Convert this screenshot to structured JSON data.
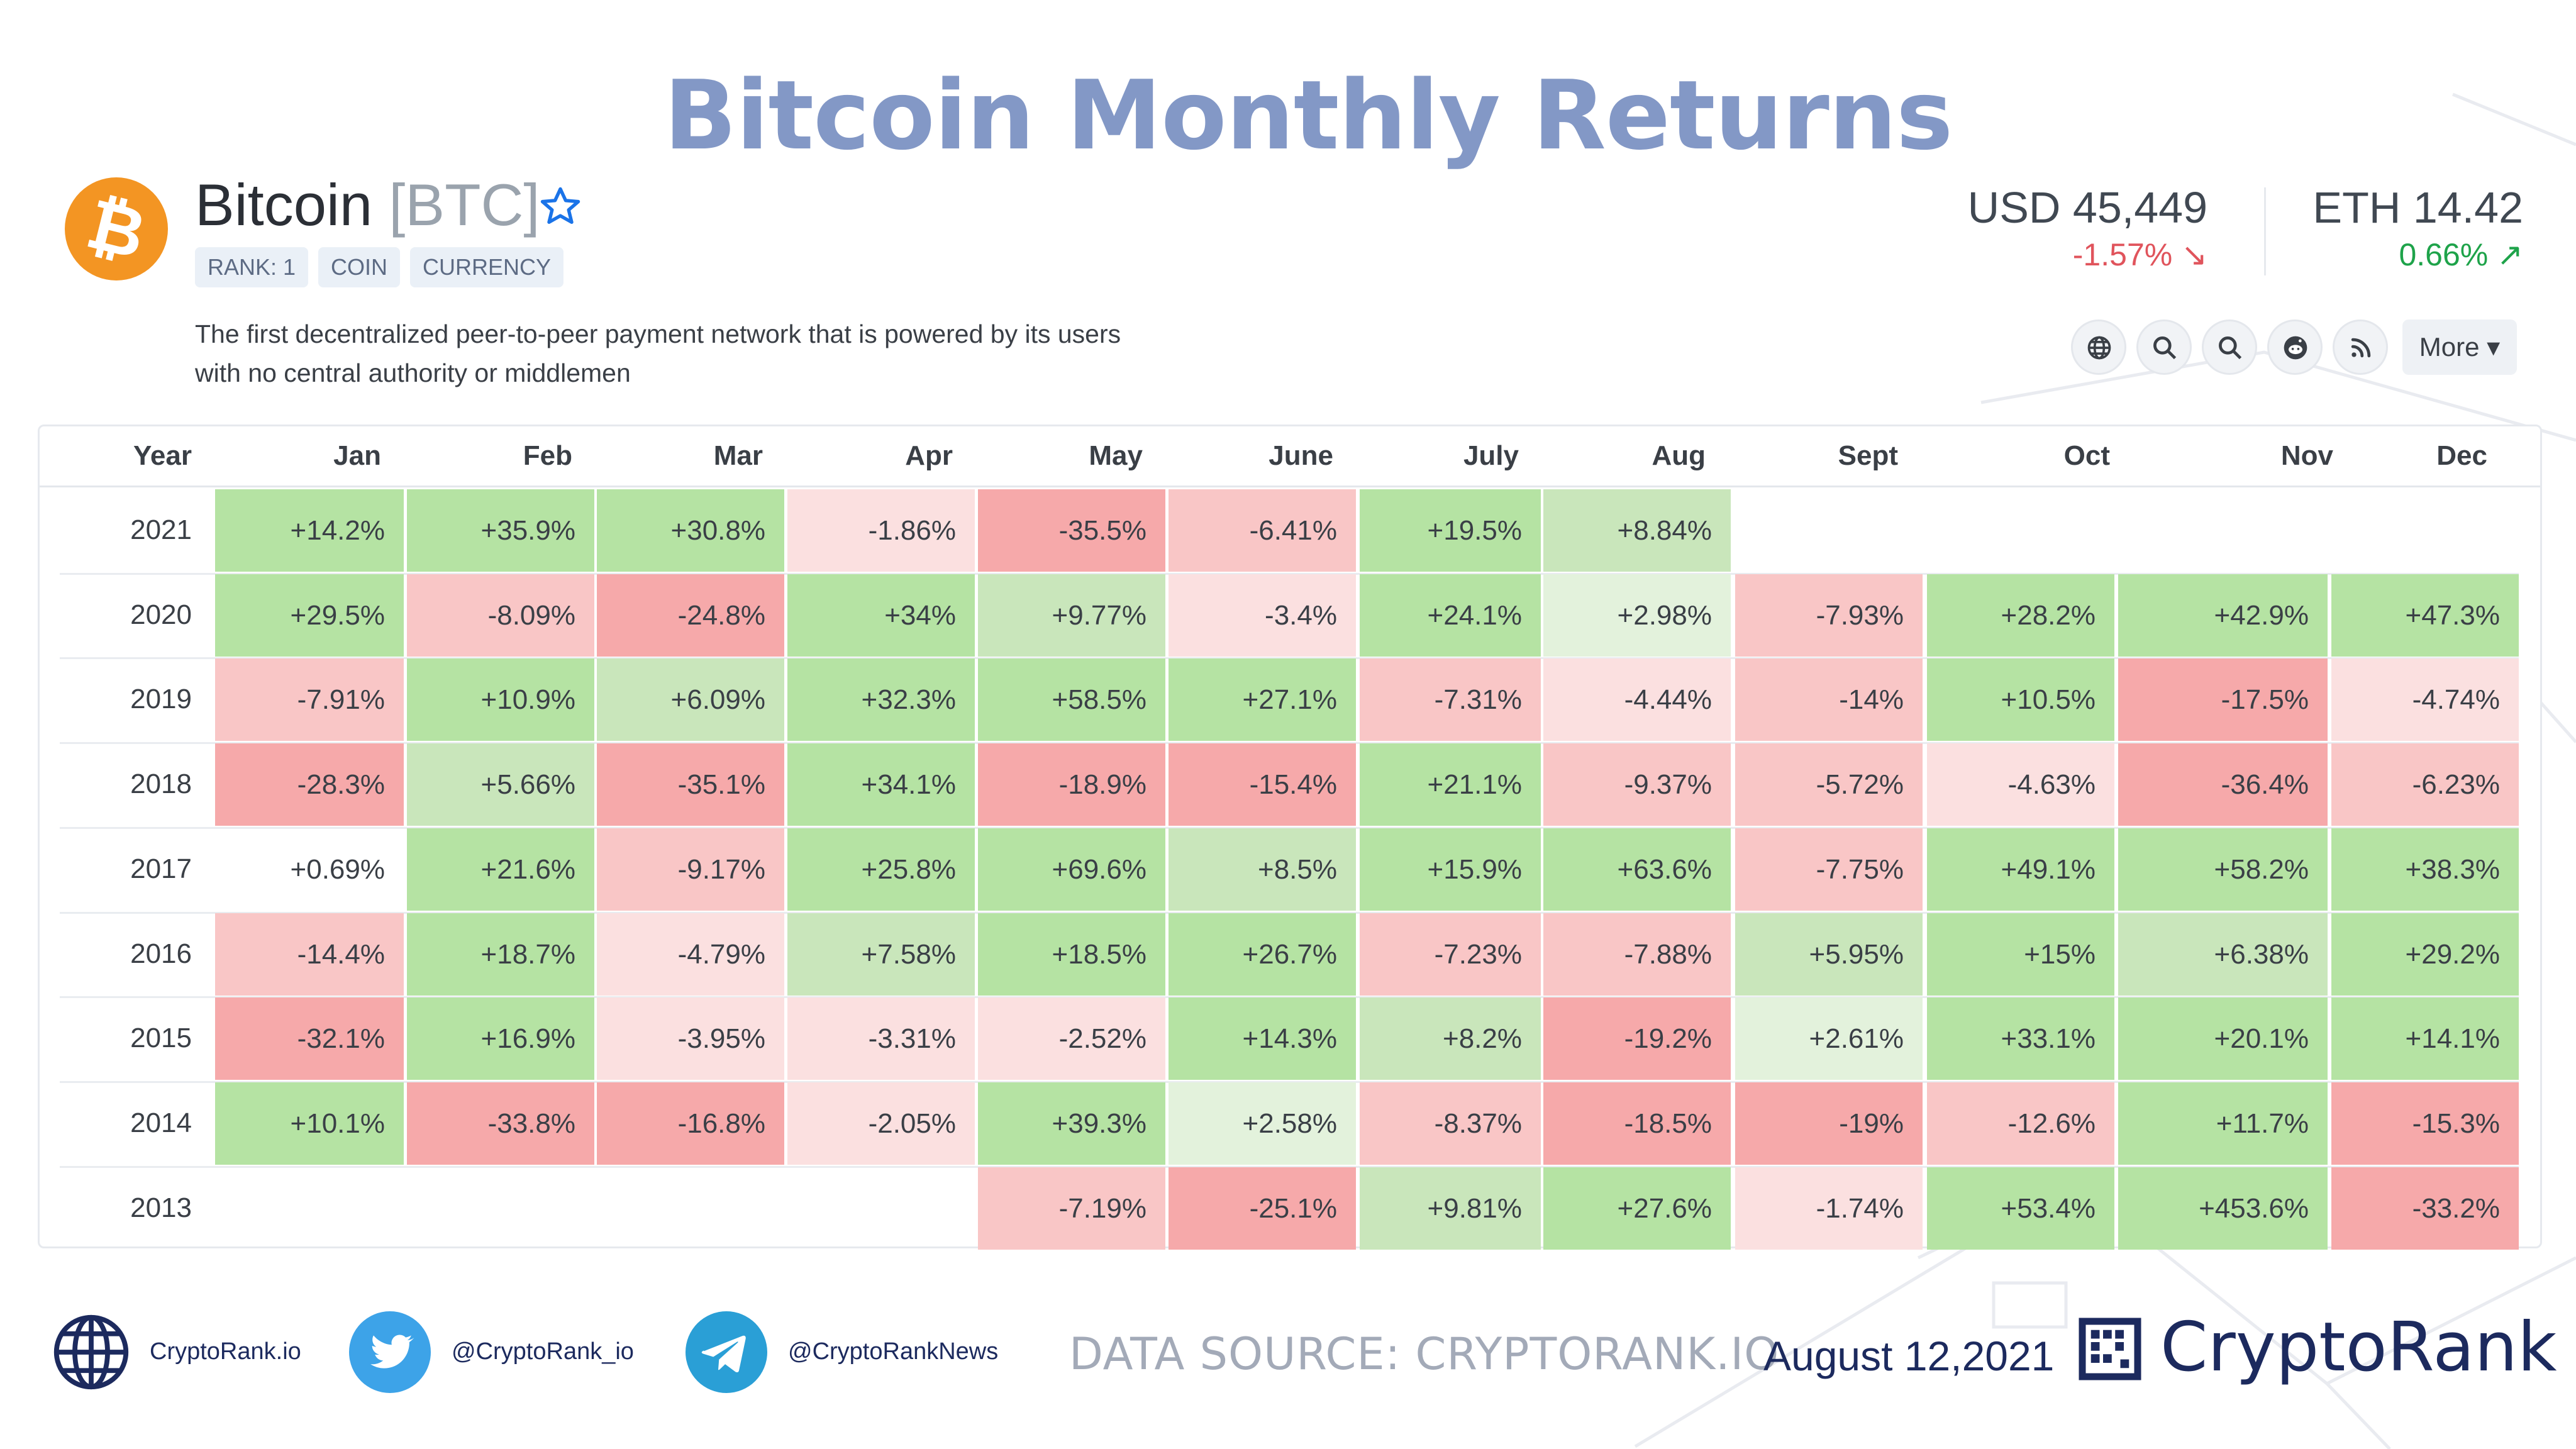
{
  "title": "Bitcoin Monthly Returns",
  "coin": {
    "name": "Bitcoin",
    "symbol": "[BTC]",
    "logo_glyph": "₿",
    "tags": [
      "RANK: 1",
      "COIN",
      "CURRENCY"
    ],
    "description_line1": "The first decentralized peer-to-peer payment network that is powered by its users",
    "description_line2": "with no central authority or middlemen"
  },
  "prices": {
    "usd": {
      "label": "USD 45,449",
      "change": "-1.57% ↘"
    },
    "eth": {
      "label": "ETH 14.42",
      "change": "0.66% ↗"
    }
  },
  "toolbar": {
    "icons": [
      "globe-icon",
      "search-icon",
      "search-icon",
      "reddit-icon",
      "rss-icon"
    ],
    "more_label": "More ▾"
  },
  "table": {
    "header": [
      "Year",
      "Jan",
      "Feb",
      "Mar",
      "Apr",
      "May",
      "June",
      "July",
      "Aug",
      "Sept",
      "Oct",
      "Nov",
      "Dec"
    ],
    "rows": [
      {
        "year": "2021",
        "values": [
          "+14.2%",
          "+35.9%",
          "+30.8%",
          "-1.86%",
          "-35.5%",
          "-6.41%",
          "+19.5%",
          "+8.84%",
          "",
          "",
          "",
          ""
        ]
      },
      {
        "year": "2020",
        "values": [
          "+29.5%",
          "-8.09%",
          "-24.8%",
          "+34%",
          "+9.77%",
          "-3.4%",
          "+24.1%",
          "+2.98%",
          "-7.93%",
          "+28.2%",
          "+42.9%",
          "+47.3%"
        ]
      },
      {
        "year": "2019",
        "values": [
          "-7.91%",
          "+10.9%",
          "+6.09%",
          "+32.3%",
          "+58.5%",
          "+27.1%",
          "-7.31%",
          "-4.44%",
          "-14%",
          "+10.5%",
          "-17.5%",
          "-4.74%"
        ]
      },
      {
        "year": "2018",
        "values": [
          "-28.3%",
          "+5.66%",
          "-35.1%",
          "+34.1%",
          "-18.9%",
          "-15.4%",
          "+21.1%",
          "-9.37%",
          "-5.72%",
          "-4.63%",
          "-36.4%",
          "-6.23%"
        ]
      },
      {
        "year": "2017",
        "values": [
          "+0.69%",
          "+21.6%",
          "-9.17%",
          "+25.8%",
          "+69.6%",
          "+8.5%",
          "+15.9%",
          "+63.6%",
          "-7.75%",
          "+49.1%",
          "+58.2%",
          "+38.3%"
        ]
      },
      {
        "year": "2016",
        "values": [
          "-14.4%",
          "+18.7%",
          "-4.79%",
          "+7.58%",
          "+18.5%",
          "+26.7%",
          "-7.23%",
          "-7.88%",
          "+5.95%",
          "+15%",
          "+6.38%",
          "+29.2%"
        ]
      },
      {
        "year": "2015",
        "values": [
          "-32.1%",
          "+16.9%",
          "-3.95%",
          "-3.31%",
          "-2.52%",
          "+14.3%",
          "+8.2%",
          "-19.2%",
          "+2.61%",
          "+33.1%",
          "+20.1%",
          "+14.1%"
        ]
      },
      {
        "year": "2014",
        "values": [
          "+10.1%",
          "-33.8%",
          "-16.8%",
          "-2.05%",
          "+39.3%",
          "+2.58%",
          "-8.37%",
          "-18.5%",
          "-19%",
          "-12.6%",
          "+11.7%",
          "-15.3%"
        ]
      },
      {
        "year": "2013",
        "values": [
          "",
          "",
          "",
          "",
          "-7.19%",
          "-25.1%",
          "+9.81%",
          "+27.6%",
          "-1.74%",
          "+53.4%",
          "+453.6%",
          "-33.2%"
        ]
      }
    ],
    "colors": {
      "green_strong": "#b5e3a3",
      "green_mid": "#c9e6bb",
      "green_light": "#e3f2dc",
      "red_strong": "#f6a9aa",
      "red_mid": "#f9c6c6",
      "red_light": "#fbe0e0"
    }
  },
  "footer": {
    "website": "CryptoRank.io",
    "twitter": "@CryptoRank_io",
    "telegram": "@CryptoRankNews",
    "datasource": "DATA SOURCE: CRYPTORANK.IO",
    "date": "August 12,2021",
    "brand": "CryptoRank"
  }
}
